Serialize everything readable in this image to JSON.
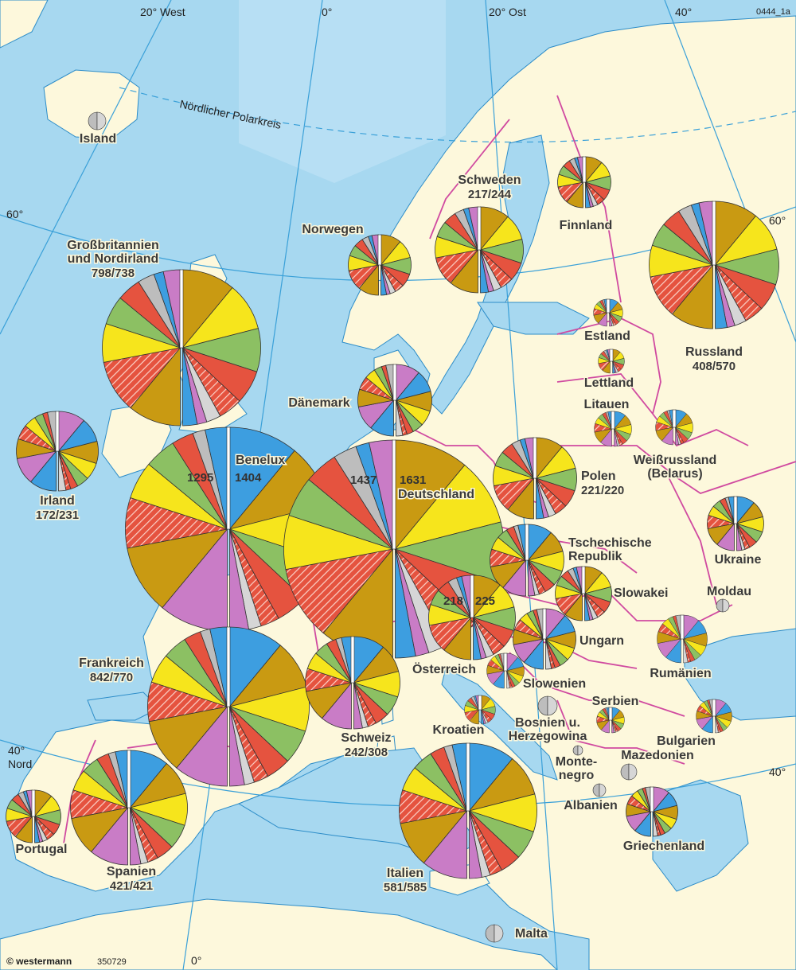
{
  "map_code": "0444_1a",
  "publisher": "© westermann",
  "publisher_id": "350729",
  "grid_labels": {
    "lon_20w": "20° West",
    "lon_0_top": "0°",
    "lon_20e": "20° Ost",
    "lon_40_top": "40°",
    "lat_60_left": "60°",
    "lat_60_right": "60°",
    "lat_40_left": "40°",
    "lat_40_left_2": "Nord",
    "lat_40_right": "40°",
    "lon_0_bottom": "0°",
    "polar_circle": "Nördlicher Polarkreis"
  },
  "colors": {
    "sea": "#a7d8f0",
    "land": "#fdf8dc",
    "border": "#d04aa0",
    "coast": "#2c8cc8",
    "grid": "#3aa0d8",
    "blue": "#3d9ee0",
    "pink": "#c97cc6",
    "ochre": "#c99a12",
    "hatch": "#e5533f",
    "yellow": "#f6e51c",
    "green": "#8cc063",
    "lightgray": "#d6d6d6",
    "darkpink": "#c0287a",
    "gray": "#bdbdbd"
  },
  "countries": [
    {
      "key": "island",
      "name": "Island",
      "value": ""
    },
    {
      "key": "gb",
      "name": "Großbritannien",
      "name2": "und Nordirland",
      "value": "798/738"
    },
    {
      "key": "irland",
      "name": "Irland",
      "value": "172/231"
    },
    {
      "key": "benelux",
      "name": "Benelux",
      "value": "",
      "left_value": "1295",
      "right_value": "1404"
    },
    {
      "key": "deutschland",
      "name": "Deutschland",
      "value": "",
      "left_value": "1437",
      "right_value": "1631"
    },
    {
      "key": "norwegen",
      "name": "Norwegen",
      "value": ""
    },
    {
      "key": "schweden",
      "name": "Schweden",
      "value": "217/244"
    },
    {
      "key": "finnland",
      "name": "Finnland",
      "value": ""
    },
    {
      "key": "russland",
      "name": "Russland",
      "value": "408/570"
    },
    {
      "key": "estland",
      "name": "Estland",
      "value": ""
    },
    {
      "key": "lettland",
      "name": "Lettland",
      "value": ""
    },
    {
      "key": "litauen",
      "name": "Litauen",
      "value": ""
    },
    {
      "key": "weissrussland",
      "name": "Weißrussland",
      "name2": "(Belarus)",
      "value": ""
    },
    {
      "key": "daenemark",
      "name": "Dänemark",
      "value": ""
    },
    {
      "key": "polen",
      "name": "Polen",
      "value": "221/220"
    },
    {
      "key": "tschechien",
      "name": "Tschechische",
      "name2": "Republik",
      "value": ""
    },
    {
      "key": "slowakei",
      "name": "Slowakei",
      "value": ""
    },
    {
      "key": "ukraine",
      "name": "Ukraine",
      "value": ""
    },
    {
      "key": "moldau",
      "name": "Moldau",
      "value": ""
    },
    {
      "key": "oesterreich",
      "name": "Österreich",
      "value": "",
      "left_value": "218",
      "right_value": "225"
    },
    {
      "key": "ungarn",
      "name": "Ungarn",
      "value": ""
    },
    {
      "key": "slowenien",
      "name": "Slowenien",
      "value": ""
    },
    {
      "key": "rumaenien",
      "name": "Rumänien",
      "value": ""
    },
    {
      "key": "frankreich",
      "name": "Frankreich",
      "value": "842/770"
    },
    {
      "key": "schweiz",
      "name": "Schweiz",
      "value": "242/308"
    },
    {
      "key": "kroatien",
      "name": "Kroatien",
      "value": ""
    },
    {
      "key": "bosnien",
      "name": "Bosnien u.",
      "name2": "Herzegowina",
      "value": ""
    },
    {
      "key": "serbien",
      "name": "Serbien",
      "value": ""
    },
    {
      "key": "bulgarien",
      "name": "Bulgarien",
      "value": ""
    },
    {
      "key": "montenegro",
      "name": "Monte-",
      "name2": "negro",
      "value": ""
    },
    {
      "key": "mazedonien",
      "name": "Mazedonien",
      "value": ""
    },
    {
      "key": "albanien",
      "name": "Albanien",
      "value": ""
    },
    {
      "key": "portugal",
      "name": "Portugal",
      "value": ""
    },
    {
      "key": "spanien",
      "name": "Spanien",
      "value": "421/421"
    },
    {
      "key": "italien",
      "name": "Italien",
      "value": "581/585"
    },
    {
      "key": "griechenland",
      "name": "Griechenland",
      "value": ""
    },
    {
      "key": "malta",
      "name": "Malta",
      "value": ""
    }
  ]
}
